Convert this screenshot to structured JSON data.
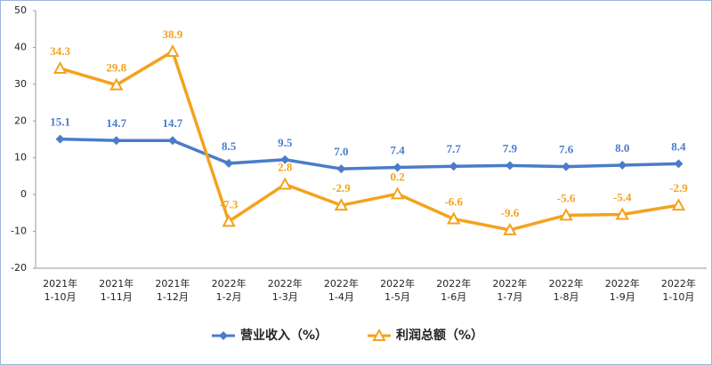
{
  "chart_data": {
    "type": "line",
    "categories": [
      [
        "2021年",
        "1-10月"
      ],
      [
        "2021年",
        "1-11月"
      ],
      [
        "2021年",
        "1-12月"
      ],
      [
        "2022年",
        "1-2月"
      ],
      [
        "2022年",
        "1-3月"
      ],
      [
        "2022年",
        "1-4月"
      ],
      [
        "2022年",
        "1-5月"
      ],
      [
        "2022年",
        "1-6月"
      ],
      [
        "2022年",
        "1-7月"
      ],
      [
        "2022年",
        "1-8月"
      ],
      [
        "2022年",
        "1-9月"
      ],
      [
        "2022年",
        "1-10月"
      ]
    ],
    "series": [
      {
        "name": "营业收入（%）",
        "color": "#4a7cc9",
        "marker": "diamond",
        "values": [
          15.1,
          14.7,
          14.7,
          8.5,
          9.5,
          7.0,
          7.4,
          7.7,
          7.9,
          7.6,
          8.0,
          8.4
        ],
        "value_labels": [
          "15.1",
          "14.7",
          "14.7",
          "8.5",
          "9.5",
          "7.0",
          "7.4",
          "7.7",
          "7.9",
          "7.6",
          "8.0",
          "8.4"
        ]
      },
      {
        "name": "利润总额（%）",
        "color": "#f4a21e",
        "marker": "triangle",
        "values": [
          34.3,
          29.8,
          38.9,
          -7.3,
          2.8,
          -2.9,
          0.2,
          -6.6,
          -9.6,
          -5.6,
          -5.4,
          -2.9
        ],
        "value_labels": [
          "34.3",
          "29.8",
          "38.9",
          "-7.3",
          "2.8",
          "-2.9",
          "0.2",
          "-6.6",
          "-9.6",
          "-5.6",
          "-5.4",
          "-2.9"
        ]
      }
    ],
    "ylim": [
      -20,
      50
    ],
    "yticks": [
      -20,
      -10,
      0,
      10,
      20,
      30,
      40,
      50
    ],
    "grid": false,
    "legend": "bottom"
  }
}
